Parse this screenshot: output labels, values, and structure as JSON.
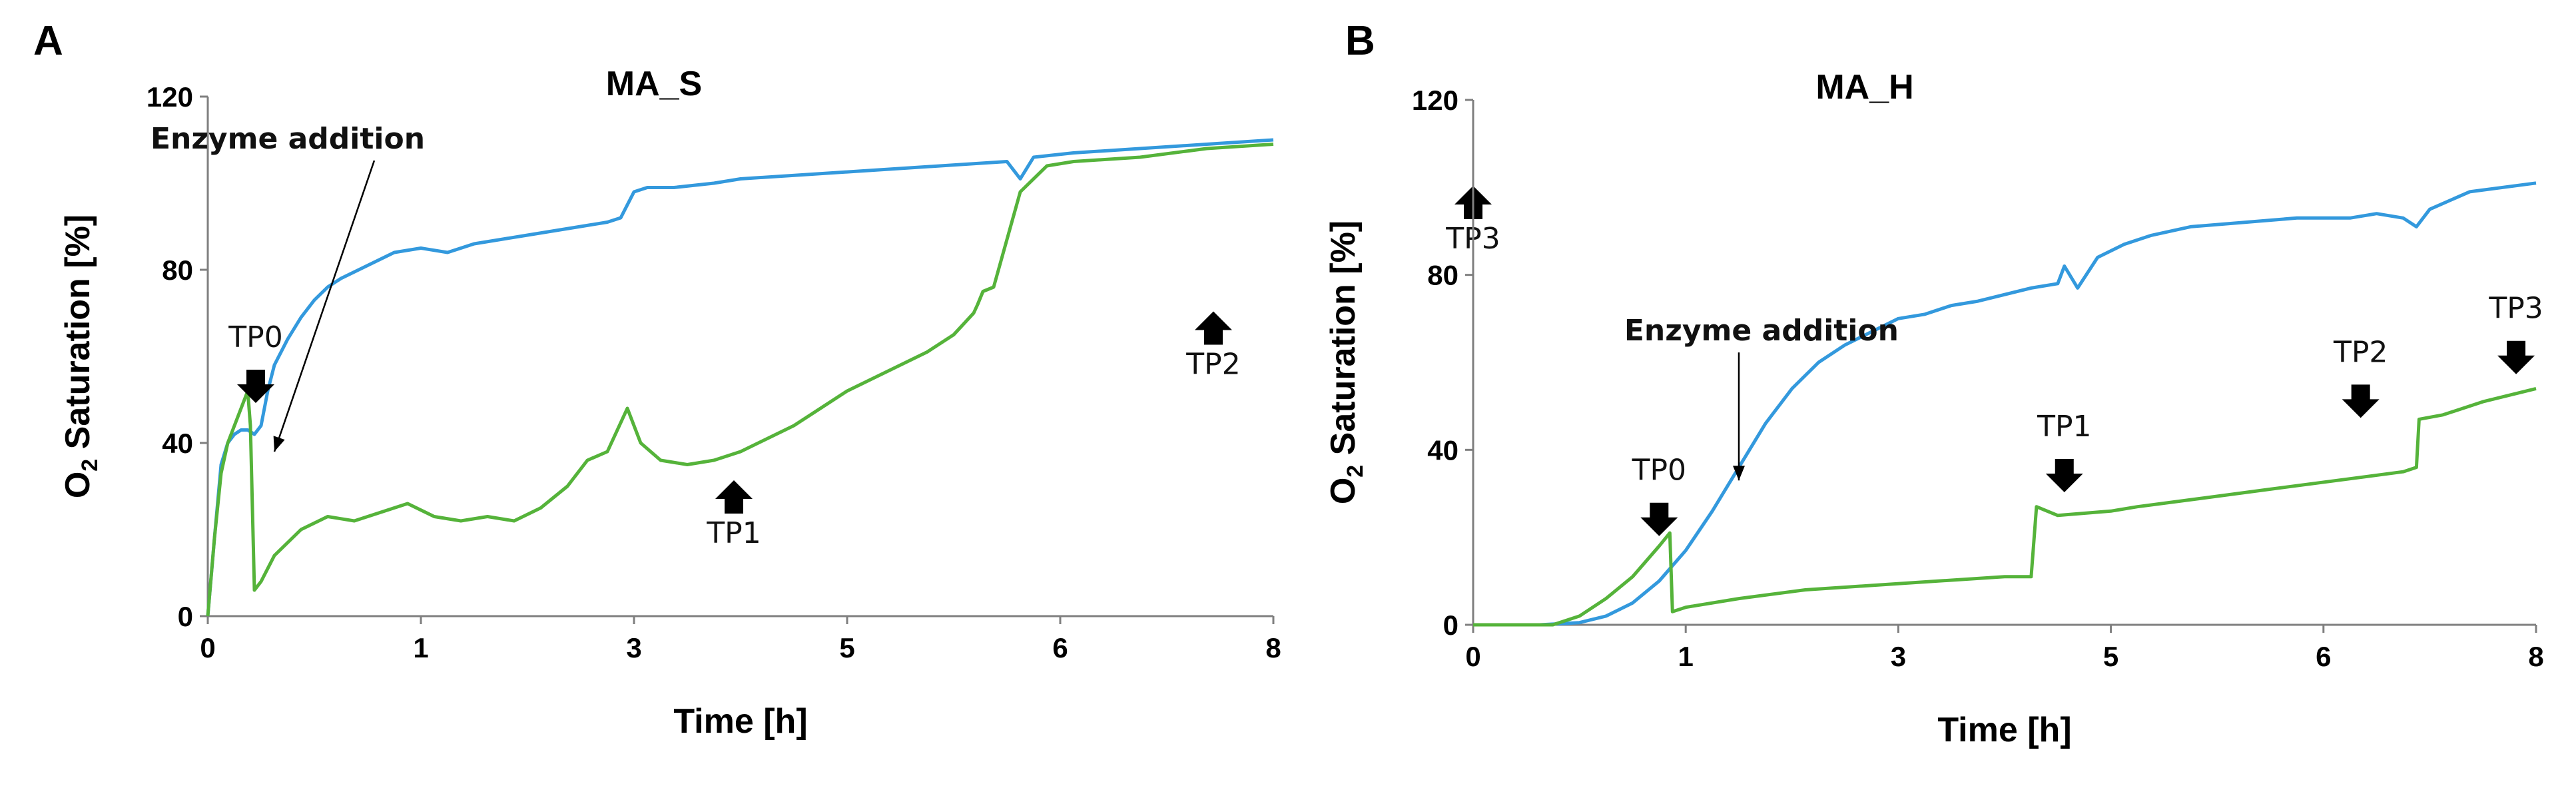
{
  "panels": [
    {
      "letter": "A"
    },
    {
      "letter": "B"
    }
  ],
  "chart_data": [
    {
      "type": "line",
      "title": "MA_S",
      "xlabel": "Time [h]",
      "ylabel_main": "O",
      "ylabel_sub": "2",
      "ylabel_rest": " Saturation [%]",
      "xlim": [
        0,
        8
      ],
      "ylim": [
        0,
        120
      ],
      "xtick_values": [
        0,
        1.6,
        3.2,
        4.8,
        6.4,
        8
      ],
      "xtick_labels": [
        "0",
        "1",
        "3",
        "5",
        "6",
        "8"
      ],
      "ytick_values": [
        0,
        40,
        80,
        120
      ],
      "ytick_labels": [
        "0",
        "40",
        "80",
        "120"
      ],
      "series": [
        {
          "name": "blue",
          "color": "#3399dd",
          "x": [
            0,
            0.05,
            0.1,
            0.15,
            0.2,
            0.25,
            0.3,
            0.35,
            0.4,
            0.45,
            0.5,
            0.6,
            0.7,
            0.8,
            0.9,
            1.0,
            1.2,
            1.4,
            1.6,
            1.8,
            2.0,
            2.2,
            2.4,
            2.6,
            2.8,
            3.0,
            3.1,
            3.2,
            3.3,
            3.5,
            3.8,
            4.0,
            4.5,
            5.0,
            5.5,
            6.0,
            6.1,
            6.2,
            6.5,
            7.0,
            7.5,
            8.0
          ],
          "y": [
            0,
            18,
            35,
            40,
            42,
            43,
            43,
            42,
            44,
            52,
            58,
            64,
            69,
            73,
            76,
            78,
            81,
            84,
            85,
            84,
            86,
            87,
            88,
            89,
            90,
            91,
            92,
            98,
            99,
            99,
            100,
            101,
            102,
            103,
            104,
            105,
            101,
            106,
            107,
            108,
            109,
            110
          ]
        },
        {
          "name": "green",
          "color": "#55b33a",
          "x": [
            0,
            0.05,
            0.1,
            0.15,
            0.2,
            0.25,
            0.3,
            0.32,
            0.35,
            0.4,
            0.5,
            0.7,
            0.9,
            1.1,
            1.3,
            1.5,
            1.7,
            1.9,
            2.1,
            2.3,
            2.5,
            2.7,
            2.85,
            3.0,
            3.15,
            3.25,
            3.4,
            3.6,
            3.8,
            4.0,
            4.2,
            4.4,
            4.6,
            4.8,
            5.0,
            5.2,
            5.4,
            5.6,
            5.75,
            5.78,
            5.82,
            5.9,
            6.1,
            6.3,
            6.5,
            7.0,
            7.5,
            8.0
          ],
          "y": [
            0,
            18,
            33,
            40,
            44,
            48,
            52,
            44,
            6,
            8,
            14,
            20,
            23,
            22,
            24,
            26,
            23,
            22,
            23,
            22,
            25,
            30,
            36,
            38,
            48,
            40,
            36,
            35,
            36,
            38,
            41,
            44,
            48,
            52,
            55,
            58,
            61,
            65,
            70,
            72,
            75,
            76,
            98,
            104,
            105,
            106,
            108,
            109
          ]
        }
      ],
      "annotations": [
        {
          "text": "Enzyme addition",
          "type": "thin-arrow",
          "x": 0.6,
          "y": 108,
          "tip_x": 0.5,
          "tip_y": 38
        },
        {
          "text": "TP0",
          "arrow": "down",
          "x": 0.36,
          "y": 56
        },
        {
          "text": "TP1",
          "arrow": "up",
          "x": 3.95,
          "y": 28
        },
        {
          "text": "TP2",
          "arrow": "up",
          "x": 7.55,
          "y": 67
        },
        {
          "text": "TP3",
          "arrow": "up",
          "x": 9.5,
          "y": 96
        }
      ]
    },
    {
      "type": "line",
      "title": "MA_H",
      "xlabel": "Time [h]",
      "ylabel_main": "O",
      "ylabel_sub": "2",
      "ylabel_rest": " Saturation [%]",
      "xlim": [
        0,
        8
      ],
      "ylim": [
        0,
        120
      ],
      "xtick_values": [
        0,
        1.6,
        3.2,
        4.8,
        6.4,
        8
      ],
      "xtick_labels": [
        "0",
        "1",
        "3",
        "5",
        "6",
        "8"
      ],
      "ytick_values": [
        0,
        40,
        80,
        120
      ],
      "ytick_labels": [
        "0",
        "40",
        "80",
        "120"
      ],
      "series": [
        {
          "name": "blue",
          "color": "#3399dd",
          "x": [
            0,
            0.5,
            0.8,
            1.0,
            1.2,
            1.4,
            1.6,
            1.8,
            2.0,
            2.2,
            2.4,
            2.6,
            2.8,
            3.0,
            3.2,
            3.4,
            3.6,
            3.8,
            4.2,
            4.4,
            4.45,
            4.55,
            4.7,
            4.9,
            5.1,
            5.4,
            5.8,
            6.2,
            6.6,
            6.8,
            7.0,
            7.1,
            7.2,
            7.5,
            8.0
          ],
          "y": [
            0,
            0,
            0.5,
            2,
            5,
            10,
            17,
            26,
            36,
            46,
            54,
            60,
            64,
            67,
            70,
            71,
            73,
            74,
            77,
            78,
            82,
            77,
            84,
            87,
            89,
            91,
            92,
            93,
            93,
            94,
            93,
            91,
            95,
            99,
            101
          ]
        },
        {
          "name": "green",
          "color": "#55b33a",
          "x": [
            0,
            0.6,
            0.8,
            1.0,
            1.2,
            1.4,
            1.48,
            1.5,
            1.6,
            2.0,
            2.5,
            3.0,
            3.5,
            4.0,
            4.2,
            4.24,
            4.4,
            4.8,
            5.0,
            5.5,
            6.0,
            6.5,
            7.0,
            7.1,
            7.12,
            7.3,
            7.6,
            8.0
          ],
          "y": [
            0,
            0,
            2,
            6,
            11,
            18,
            21,
            3,
            4,
            6,
            8,
            9,
            10,
            11,
            11,
            27,
            25,
            26,
            27,
            29,
            31,
            33,
            35,
            36,
            47,
            48,
            51,
            54
          ]
        }
      ],
      "annotations": [
        {
          "text": "Enzyme addition",
          "type": "thin-arrow",
          "x": 2.17,
          "y": 65,
          "tip_x": 2.0,
          "tip_y": 33
        },
        {
          "text": "TP0",
          "arrow": "down",
          "x": 1.4,
          "y": 27
        },
        {
          "text": "TP1",
          "arrow": "down",
          "x": 4.45,
          "y": 37
        },
        {
          "text": "TP2",
          "arrow": "down",
          "x": 6.68,
          "y": 54
        },
        {
          "text": "TP3",
          "arrow": "down",
          "x": 7.85,
          "y": 64
        }
      ]
    }
  ]
}
